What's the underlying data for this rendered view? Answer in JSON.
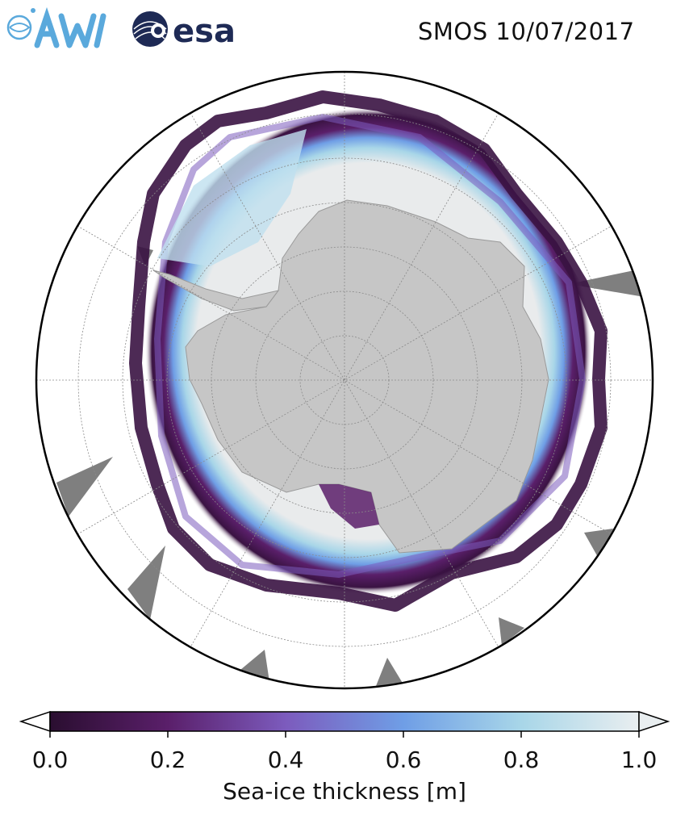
{
  "header": {
    "title": "SMOS 10/07/2017",
    "logo_awi_text": "AWI",
    "logo_esa_text": "esa"
  },
  "map": {
    "projection": "south-polar-stereographic",
    "land_color": "#c6c6c6",
    "thick_ice_color": "#e9ebec",
    "open_ocean_color": "#ffffff",
    "missing_data_color": "#7f7f7f",
    "graticule_color": "#8a8a8a"
  },
  "colorbar": {
    "label": "Sea-ice thickness [m]",
    "ticks": [
      "0.0",
      "0.2",
      "0.4",
      "0.6",
      "0.8",
      "1.0"
    ],
    "tick_values": [
      0.0,
      0.2,
      0.4,
      0.6,
      0.8,
      1.0
    ],
    "min": 0.0,
    "max": 1.0,
    "extend": "both",
    "colormap_stops": [
      "#2a0e30",
      "#5a1f6a",
      "#7c5bbd",
      "#6f9ee6",
      "#a8d6e8",
      "#e9eef0"
    ]
  }
}
